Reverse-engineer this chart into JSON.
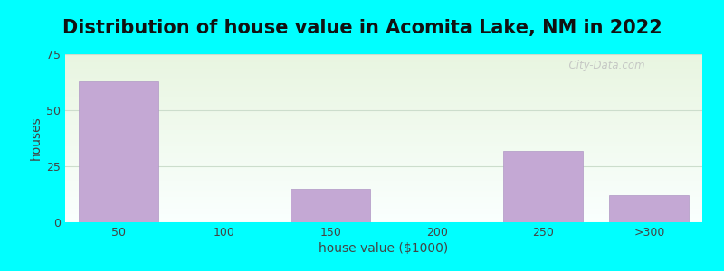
{
  "title": "Distribution of house value in Acomita Lake, NM in 2022",
  "xlabel": "house value ($1000)",
  "ylabel": "houses",
  "categories": [
    "50",
    "100",
    "150",
    "200",
    "250",
    ">300"
  ],
  "values": [
    63,
    0,
    15,
    0,
    32,
    12
  ],
  "bar_color": "#C4A8D4",
  "bar_edge_color": "#B098C4",
  "background_color": "#00FFFF",
  "grad_top_color": "#E8F5E0",
  "grad_bottom_color": "#FAFFFE",
  "ylim": [
    0,
    75
  ],
  "yticks": [
    0,
    25,
    50,
    75
  ],
  "title_fontsize": 15,
  "axis_fontsize": 10,
  "tick_fontsize": 9,
  "bar_width": 0.75,
  "watermark": "City-Data.com",
  "watermark_icon": "○",
  "grid_color": "#DDEEDC"
}
